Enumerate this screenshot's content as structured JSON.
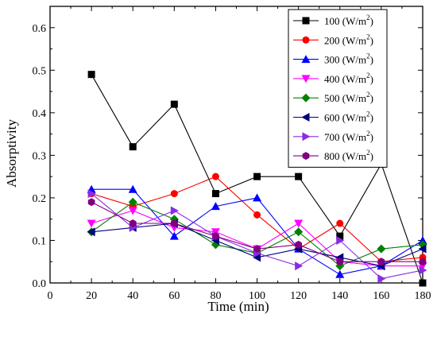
{
  "chart_data": {
    "type": "line",
    "xlabel": "Time (min)",
    "ylabel": "Absorptivity",
    "xlim": [
      0,
      180
    ],
    "ylim": [
      0.0,
      0.65
    ],
    "xticks": [
      0,
      20,
      40,
      60,
      80,
      100,
      120,
      140,
      160,
      180
    ],
    "yticks": [
      0.0,
      0.1,
      0.2,
      0.3,
      0.4,
      0.5,
      0.6
    ],
    "xtick_labels": [
      "0",
      "20",
      "40",
      "60",
      "80",
      "100",
      "120",
      "140",
      "160",
      "180"
    ],
    "ytick_labels": [
      "0.0",
      "0.1",
      "0.2",
      "0.3",
      "0.4",
      "0.5",
      "0.6"
    ],
    "grid": false,
    "legend_position": "top-right",
    "x": [
      20,
      40,
      60,
      80,
      100,
      120,
      140,
      160,
      180
    ],
    "series": [
      {
        "name": "100 (W/m2)",
        "label_main": "100 (W/m",
        "label_sup": "2",
        "label_end": ")",
        "color": "#000000",
        "marker": "square",
        "values": [
          0.49,
          0.32,
          0.42,
          0.21,
          0.25,
          0.25,
          0.11,
          0.28,
          0.0
        ]
      },
      {
        "name": "200 (W/m2)",
        "label_main": "200 (W/m",
        "label_sup": "2",
        "label_end": ")",
        "color": "#ff0000",
        "marker": "circle",
        "values": [
          0.21,
          0.18,
          0.21,
          0.25,
          0.16,
          0.08,
          0.14,
          0.05,
          0.06
        ]
      },
      {
        "name": "300 (W/m2)",
        "label_main": "300 (W/m",
        "label_sup": "2",
        "label_end": ")",
        "color": "#0000ff",
        "marker": "triangle-up",
        "values": [
          0.22,
          0.22,
          0.11,
          0.18,
          0.2,
          0.08,
          0.02,
          0.04,
          0.1
        ]
      },
      {
        "name": "400 (W/m2)",
        "label_main": "400 (W/m",
        "label_sup": "2",
        "label_end": ")",
        "color": "#ff00ff",
        "marker": "triangle-down",
        "values": [
          0.14,
          0.17,
          0.13,
          0.12,
          0.08,
          0.14,
          0.05,
          0.04,
          0.04
        ]
      },
      {
        "name": "500 (W/m2)",
        "label_main": "500 (W/m",
        "label_sup": "2",
        "label_end": ")",
        "color": "#008000",
        "marker": "diamond",
        "values": [
          0.12,
          0.19,
          0.15,
          0.09,
          0.07,
          0.12,
          0.04,
          0.08,
          0.09
        ]
      },
      {
        "name": "600 (W/m2)",
        "label_main": "600 (W/m",
        "label_sup": "2",
        "label_end": ")",
        "color": "#000080",
        "marker": "triangle-left",
        "values": [
          0.12,
          0.13,
          0.14,
          0.1,
          0.06,
          0.08,
          0.06,
          0.04,
          0.08
        ]
      },
      {
        "name": "700 (W/m2)",
        "label_main": "700 (W/m",
        "label_sup": "2",
        "label_end": ")",
        "color": "#8a2be2",
        "marker": "triangle-right",
        "values": [
          0.21,
          0.13,
          0.17,
          0.11,
          0.07,
          0.04,
          0.1,
          0.01,
          0.03
        ]
      },
      {
        "name": "800 (W/m2)",
        "label_main": "800 (W/m",
        "label_sup": "2",
        "label_end": ")",
        "color": "#800080",
        "marker": "hexagon",
        "values": [
          0.19,
          0.14,
          0.14,
          0.11,
          0.08,
          0.09,
          0.05,
          0.05,
          0.05
        ]
      }
    ]
  }
}
